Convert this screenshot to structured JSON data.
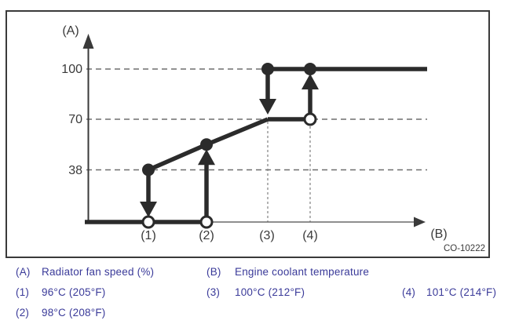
{
  "figure": {
    "id_label": "CO-10222",
    "axis_labels": {
      "y": "(A)",
      "x": "(B)"
    },
    "y_ticks": [
      "100",
      "70",
      "38"
    ],
    "x_ticks": [
      "(1)",
      "(2)",
      "(3)",
      "(4)"
    ]
  },
  "legend": {
    "items": [
      {
        "key": "(A)",
        "text": "Radiator fan speed (%)"
      },
      {
        "key": "(B)",
        "text": "Engine coolant temperature"
      },
      {
        "key": "(1)",
        "text": "96°C (205°F)"
      },
      {
        "key": "(2)",
        "text": "98°C (208°F)"
      },
      {
        "key": "(3)",
        "text": "100°C (212°F)"
      },
      {
        "key": "(4)",
        "text": "101°C (214°F)"
      }
    ]
  },
  "colors": {
    "diagram_ink": "#2b2b2b",
    "axis_gray": "#3a3a3a",
    "guide_gray": "#6e6e6e",
    "legend_text": "#3a3a99",
    "box_border": "#3a3a3a"
  },
  "chart_data": {
    "type": "line",
    "title": "",
    "xlabel": "Engine coolant temperature",
    "ylabel": "Radiator fan speed (%)",
    "ylim": [
      0,
      100
    ],
    "y_ticks": [
      38,
      70,
      100
    ],
    "x_points": [
      {
        "label": "(1)",
        "temp_c": 96,
        "temp_f": 205
      },
      {
        "label": "(2)",
        "temp_c": 98,
        "temp_f": 208
      },
      {
        "label": "(3)",
        "temp_c": 100,
        "temp_f": 212
      },
      {
        "label": "(4)",
        "temp_c": 101,
        "temp_f": 214
      }
    ],
    "segments": [
      {
        "name": "zero-speed",
        "points": [
          [
            "origin",
            0
          ],
          [
            "(2)",
            0
          ]
        ]
      },
      {
        "name": "ramp",
        "points": [
          [
            "(1)",
            38
          ],
          [
            "(2)",
            54
          ],
          [
            "(3)",
            70
          ]
        ]
      },
      {
        "name": "plateau-70",
        "points": [
          [
            "(3)",
            70
          ],
          [
            "(4)",
            70
          ]
        ]
      },
      {
        "name": "full-speed",
        "points": [
          [
            "(3)",
            100
          ],
          [
            "right-end",
            100
          ]
        ]
      }
    ],
    "markers": [
      {
        "at": "(1)",
        "value": 38,
        "style": "filled"
      },
      {
        "at": "(1)",
        "value": 0,
        "style": "open"
      },
      {
        "at": "(2)",
        "value": 54,
        "style": "filled"
      },
      {
        "at": "(2)",
        "value": 0,
        "style": "open"
      },
      {
        "at": "(3)",
        "value": 100,
        "style": "filled"
      },
      {
        "at": "(4)",
        "value": 100,
        "style": "filled"
      },
      {
        "at": "(4)",
        "value": 70,
        "style": "open"
      }
    ],
    "transition_arrows": [
      {
        "at": "(1)",
        "from": 38,
        "to": 0,
        "direction": "down"
      },
      {
        "at": "(2)",
        "from": 0,
        "to": 54,
        "direction": "up"
      },
      {
        "at": "(3)",
        "from": 100,
        "to": 70,
        "direction": "down"
      },
      {
        "at": "(4)",
        "from": 70,
        "to": 100,
        "direction": "up"
      }
    ],
    "guides": {
      "horizontal_dashed_at": [
        100,
        70,
        38
      ],
      "vertical_dashed_at": [
        "(3)",
        "(4)"
      ]
    },
    "grid": "dashed reference lines only",
    "legend_position": "below"
  }
}
